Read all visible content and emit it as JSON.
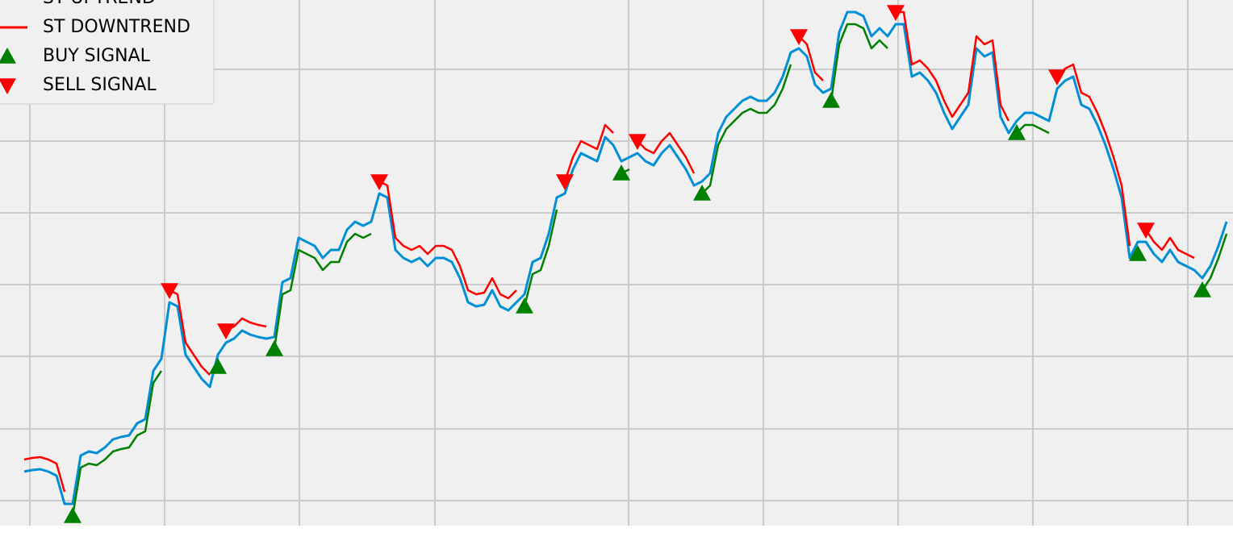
{
  "chart_data": {
    "type": "line",
    "x": [
      0,
      1,
      2,
      3,
      4,
      5,
      6,
      7,
      8,
      9,
      10,
      11,
      12,
      13,
      14,
      15,
      16,
      17,
      18,
      19,
      20,
      21,
      22,
      23,
      24,
      25,
      26,
      27,
      28,
      29,
      30,
      31,
      32,
      33,
      34,
      35,
      36,
      37,
      38,
      39,
      40,
      41,
      42,
      43,
      44,
      45,
      46,
      47,
      48,
      49,
      50,
      51,
      52,
      53,
      54,
      55,
      56,
      57,
      58,
      59,
      60,
      61,
      62,
      63,
      64,
      65,
      66,
      67,
      68,
      69,
      70,
      71,
      72,
      73,
      74,
      75,
      76,
      77,
      78,
      79,
      80,
      81,
      82,
      83,
      84,
      85,
      86,
      87,
      88,
      89,
      90,
      91,
      92,
      93,
      94,
      95,
      96,
      97,
      98,
      99,
      100,
      101,
      102,
      103,
      104,
      105,
      106,
      107,
      108,
      109,
      110,
      111,
      112,
      113,
      114,
      115,
      116,
      117,
      118,
      119,
      120,
      121,
      122,
      123,
      124,
      125,
      126,
      127,
      128,
      129,
      130,
      131,
      132,
      133,
      134,
      135,
      136,
      137,
      138,
      139,
      140,
      141,
      142,
      143,
      144,
      145,
      146,
      147,
      148,
      149
    ],
    "xlim": [
      -3,
      149.8
    ],
    "ylim": [
      0,
      652
    ],
    "grid": true,
    "legend": "upper left",
    "series": [
      {
        "color": "#008fd5",
        "values": [
          67,
          69,
          70,
          67,
          62,
          27,
          27,
          87,
          92,
          90,
          97,
          107,
          110,
          112,
          127,
          132,
          192,
          207,
          277,
          272,
          212,
          197,
          182,
          172,
          212,
          227,
          232,
          242,
          237,
          234,
          232,
          234,
          302,
          307,
          357,
          352,
          347,
          332,
          342,
          342,
          367,
          377,
          372,
          377,
          412,
          407,
          342,
          332,
          327,
          332,
          322,
          332,
          332,
          327,
          307,
          277,
          272,
          274,
          292,
          272,
          267,
          277,
          287,
          327,
          332,
          362,
          407,
          412,
          442,
          462,
          457,
          452,
          482,
          472,
          452,
          457,
          462,
          452,
          447,
          462,
          472,
          457,
          442,
          422,
          427,
          437,
          487,
          507,
          517,
          527,
          532,
          527,
          527,
          537,
          557,
          587,
          592,
          582,
          547,
          537,
          542,
          612,
          637,
          637,
          632,
          607,
          617,
          607,
          622,
          622,
          557,
          562,
          552,
          537,
          512,
          492,
          507,
          522,
          592,
          582,
          587,
          507,
          487,
          502,
          512,
          512,
          507,
          502,
          542,
          552,
          557,
          522,
          517,
          497,
          472,
          442,
          407,
          332,
          352,
          352,
          337,
          327,
          342,
          327,
          322,
          317,
          307,
          322,
          347,
          377
        ]
      },
      {
        "name": "ST UPTREND",
        "color": "#008000",
        "values": [
          null,
          null,
          null,
          null,
          null,
          null,
          12,
          72,
          77,
          75,
          82,
          92,
          95,
          97,
          112,
          117,
          177,
          192,
          null,
          null,
          null,
          null,
          null,
          null,
          197,
          null,
          null,
          null,
          null,
          null,
          null,
          219,
          287,
          292,
          342,
          337,
          332,
          317,
          327,
          327,
          352,
          362,
          357,
          362,
          null,
          null,
          null,
          null,
          null,
          null,
          null,
          null,
          null,
          null,
          null,
          null,
          null,
          null,
          null,
          null,
          null,
          null,
          272,
          312,
          317,
          347,
          392,
          null,
          null,
          null,
          null,
          null,
          null,
          null,
          437,
          442,
          null,
          null,
          null,
          null,
          null,
          null,
          null,
          null,
          412,
          422,
          472,
          492,
          502,
          512,
          517,
          512,
          512,
          522,
          542,
          572,
          null,
          null,
          null,
          null,
          527,
          597,
          622,
          622,
          617,
          592,
          602,
          592,
          null,
          null,
          null,
          null,
          null,
          null,
          null,
          null,
          null,
          null,
          null,
          null,
          null,
          null,
          null,
          487,
          497,
          497,
          492,
          487,
          null,
          null,
          null,
          null,
          null,
          null,
          null,
          null,
          null,
          null,
          337,
          null,
          null,
          null,
          null,
          null,
          null,
          null,
          292,
          307,
          332,
          362
        ]
      },
      {
        "name": "ST DOWNTREND",
        "color": "#ff0000",
        "values": [
          82,
          84,
          85,
          82,
          77,
          42,
          null,
          null,
          null,
          null,
          null,
          null,
          null,
          null,
          null,
          null,
          null,
          null,
          292,
          287,
          227,
          212,
          197,
          187,
          null,
          242,
          247,
          257,
          252,
          249,
          247,
          null,
          null,
          null,
          null,
          null,
          null,
          null,
          null,
          null,
          null,
          null,
          null,
          null,
          427,
          422,
          357,
          347,
          342,
          347,
          337,
          347,
          347,
          342,
          322,
          292,
          287,
          289,
          307,
          287,
          282,
          292,
          null,
          null,
          null,
          null,
          null,
          427,
          457,
          477,
          472,
          467,
          497,
          487,
          null,
          null,
          477,
          467,
          462,
          477,
          487,
          472,
          457,
          437,
          null,
          null,
          null,
          null,
          null,
          null,
          null,
          null,
          null,
          null,
          null,
          null,
          607,
          597,
          562,
          552,
          null,
          null,
          null,
          null,
          null,
          null,
          null,
          null,
          637,
          637,
          572,
          577,
          567,
          552,
          527,
          507,
          522,
          537,
          607,
          597,
          602,
          522,
          502,
          null,
          null,
          null,
          null,
          null,
          557,
          567,
          572,
          537,
          532,
          512,
          487,
          457,
          422,
          347,
          null,
          367,
          352,
          342,
          357,
          342,
          337,
          332,
          null,
          null,
          null,
          null
        ]
      }
    ],
    "markers": [
      {
        "name": "BUY SIGNAL",
        "color": "#008000",
        "shape": "up",
        "x": [
          6,
          24,
          31,
          62,
          74,
          84,
          100,
          123,
          138,
          146
        ],
        "y": [
          12,
          197,
          219,
          272,
          437,
          412,
          527,
          487,
          337,
          292
        ]
      },
      {
        "name": "SELL SIGNAL",
        "color": "#ff0000",
        "shape": "down",
        "x": [
          18,
          25,
          44,
          67,
          76,
          96,
          108,
          128,
          139
        ],
        "y": [
          292,
          242,
          427,
          427,
          477,
          607,
          637,
          557,
          367
        ]
      }
    ]
  }
}
